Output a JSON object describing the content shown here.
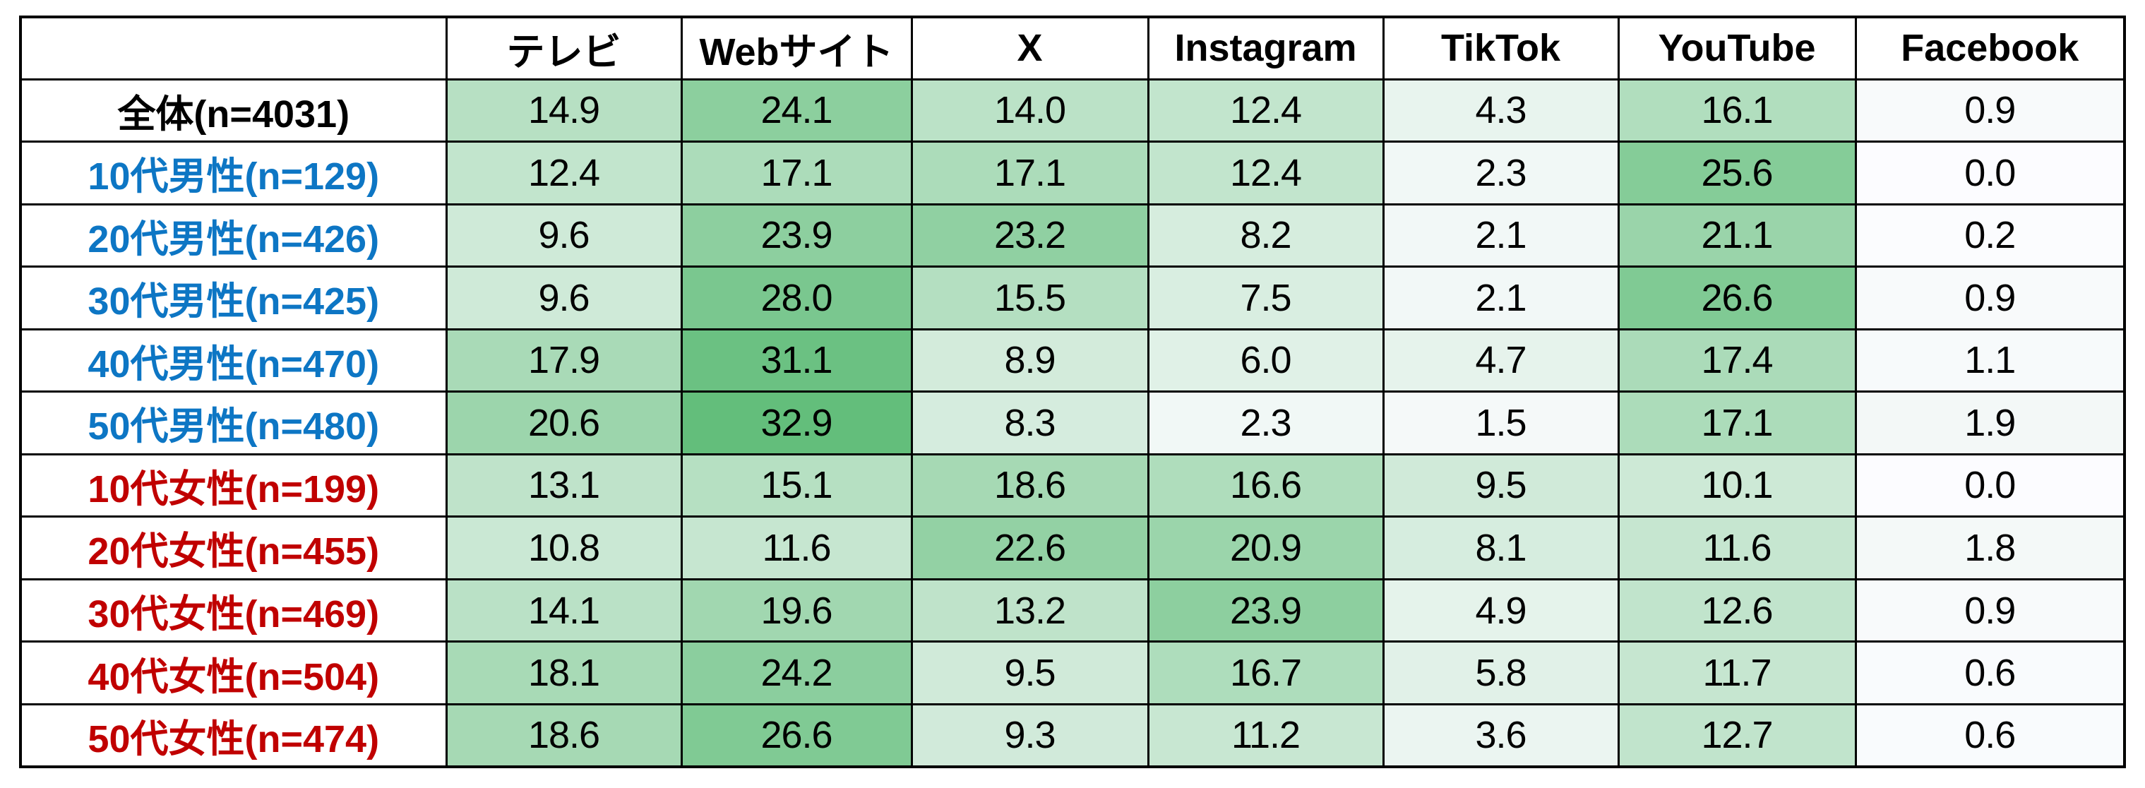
{
  "page": {
    "background": "#FFFFFF"
  },
  "colors": {
    "border": "#000000",
    "header_text": "#000000",
    "value_text": "#000000",
    "male_label": "#0D76C4",
    "female_label": "#C00000",
    "total_label": "#000000"
  },
  "chart_data": {
    "type": "heatmap",
    "title": "",
    "corner_label": "",
    "columns": [
      "テレビ",
      "Webサイト",
      "X",
      "Instagram",
      "TikTok",
      "YouTube",
      "Facebook"
    ],
    "rows": [
      {
        "label": "全体(n=4031)",
        "label_color": "#000000",
        "values": [
          "14.9",
          "24.1",
          "14.0",
          "12.4",
          "4.3",
          "16.1",
          "0.9"
        ]
      },
      {
        "label": "10代男性(n=129)",
        "label_color": "#0D76C4",
        "values": [
          "12.4",
          "17.1",
          "17.1",
          "12.4",
          "2.3",
          "25.6",
          "0.0"
        ]
      },
      {
        "label": "20代男性(n=426)",
        "label_color": "#0D76C4",
        "values": [
          "9.6",
          "23.9",
          "23.2",
          "8.2",
          "2.1",
          "21.1",
          "0.2"
        ]
      },
      {
        "label": "30代男性(n=425)",
        "label_color": "#0D76C4",
        "values": [
          "9.6",
          "28.0",
          "15.5",
          "7.5",
          "2.1",
          "26.6",
          "0.9"
        ]
      },
      {
        "label": "40代男性(n=470)",
        "label_color": "#0D76C4",
        "values": [
          "17.9",
          "31.1",
          "8.9",
          "6.0",
          "4.7",
          "17.4",
          "1.1"
        ]
      },
      {
        "label": "50代男性(n=480)",
        "label_color": "#0D76C4",
        "values": [
          "20.6",
          "32.9",
          "8.3",
          "2.3",
          "1.5",
          "17.1",
          "1.9"
        ]
      },
      {
        "label": "10代女性(n=199)",
        "label_color": "#C00000",
        "values": [
          "13.1",
          "15.1",
          "18.6",
          "16.6",
          "9.5",
          "10.1",
          "0.0"
        ]
      },
      {
        "label": "20代女性(n=455)",
        "label_color": "#C00000",
        "values": [
          "10.8",
          "11.6",
          "22.6",
          "20.9",
          "8.1",
          "11.6",
          "1.8"
        ]
      },
      {
        "label": "30代女性(n=469)",
        "label_color": "#C00000",
        "values": [
          "14.1",
          "19.6",
          "13.2",
          "23.9",
          "4.9",
          "12.6",
          "0.9"
        ]
      },
      {
        "label": "40代女性(n=504)",
        "label_color": "#C00000",
        "values": [
          "18.1",
          "24.2",
          "9.5",
          "16.7",
          "5.8",
          "11.7",
          "0.6"
        ]
      },
      {
        "label": "50代女性(n=474)",
        "label_color": "#C00000",
        "values": [
          "18.6",
          "26.6",
          "9.3",
          "11.2",
          "3.6",
          "12.7",
          "0.6"
        ]
      }
    ],
    "color_scale": {
      "min_value": 0,
      "max_value": 32.9,
      "min_color": "#FCFCFF",
      "max_color": "#63BE7B"
    },
    "layout_hints": {
      "grid": "all-borders",
      "value_alignment": "center",
      "legend": "none"
    }
  }
}
